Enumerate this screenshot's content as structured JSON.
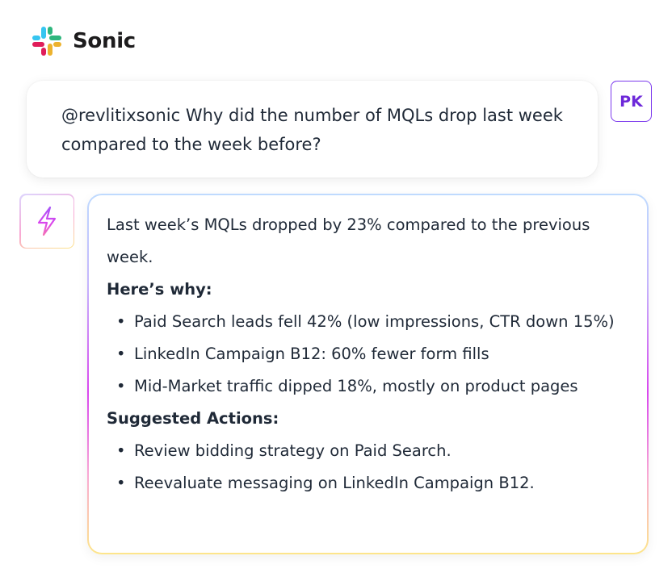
{
  "header": {
    "app_name": "Sonic",
    "logo_icon": "slack-style-hash-logo",
    "logo_colors": [
      "#36C5F0",
      "#2EB67D",
      "#ECB22E",
      "#E01E5A"
    ]
  },
  "user_message": {
    "text": "@revlitixsonic Why did the number of MQLs drop last week compared to the week before?",
    "avatar_initials": "PK",
    "avatar_color": "#7c3aed"
  },
  "bot_message": {
    "avatar_icon": "lightning-bolt-icon",
    "intro": "Last week’s MQLs dropped by 23% compared to the previous week.",
    "why_title": "Here’s why:",
    "why_items": [
      "Paid Search leads fell 42% (low impressions, CTR down 15%)",
      "LinkedIn Campaign B12: 60% fewer form fills",
      "Mid-Market traffic dipped 18%, mostly on product pages"
    ],
    "actions_title": "Suggested Actions:",
    "action_items": [
      "Review bidding strategy on Paid Search.",
      "Reevaluate messaging on LinkedIn Campaign B12."
    ]
  }
}
